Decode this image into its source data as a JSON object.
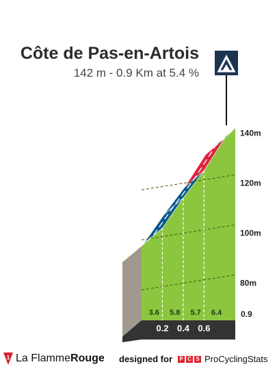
{
  "header": {
    "title": "Côte de Pas-en-Artois",
    "subtitle": "142 m - 0.9 Km at 5.4 %"
  },
  "summit_icon": "mountain-peak-icon",
  "chart_data": {
    "type": "area",
    "title": "Côte de Pas-en-Artois",
    "y_ticks": [
      "80m",
      "100m",
      "120m",
      "140m"
    ],
    "ylim": [
      70,
      142
    ],
    "total_distance_label": "0.9",
    "x_labels": [
      "0.2",
      "0.4",
      "0.6"
    ],
    "segments": [
      {
        "from_km": 0.0,
        "to_km": 0.2,
        "gradient_label": "3.6",
        "color": "#5fd31d"
      },
      {
        "from_km": 0.2,
        "to_km": 0.4,
        "gradient_label": "5.8",
        "color": "#0b5a8c"
      },
      {
        "from_km": 0.4,
        "to_km": 0.6,
        "gradient_label": "5.7",
        "color": "#0b5a8c"
      },
      {
        "from_km": 0.6,
        "to_km": 0.8,
        "gradient_label": "6.4",
        "color": "#e0223f"
      },
      {
        "from_km": 0.8,
        "to_km": 0.9,
        "gradient_label": "",
        "color": "#0b5a8c"
      }
    ],
    "profile": [
      {
        "km": 0.0,
        "elev": 95
      },
      {
        "km": 0.2,
        "elev": 102
      },
      {
        "km": 0.4,
        "elev": 114
      },
      {
        "km": 0.6,
        "elev": 125
      },
      {
        "km": 0.8,
        "elev": 138
      },
      {
        "km": 0.9,
        "elev": 142
      }
    ],
    "colors": {
      "fill": "#8cc63f",
      "side": "#a09a8c",
      "base": "#333333",
      "ramp_dark": "#0b5a8c",
      "ramp_red": "#e0223f",
      "ramp_green": "#5fd31d"
    }
  },
  "footer": {
    "brand_prefix": "La Flamme",
    "brand_suffix": "Rouge",
    "brand_badge": "1",
    "credit_label": "designed for",
    "credit_letters": [
      "P",
      "C",
      "S"
    ],
    "credit_name": "ProCyclingStats"
  }
}
